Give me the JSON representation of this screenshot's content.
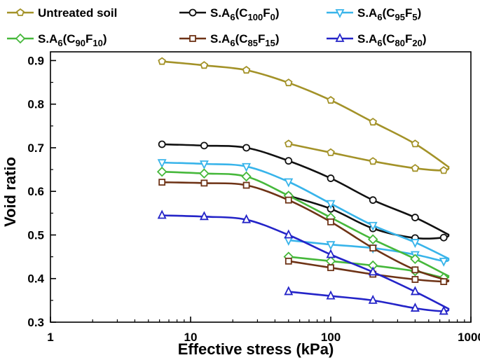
{
  "chart_data": {
    "type": "line",
    "title": "",
    "xlabel": "Effective stress (kPa)",
    "ylabel": "Void ratio",
    "xscale": "log",
    "xlim": [
      1,
      1000
    ],
    "ylim": [
      0.3,
      0.92
    ],
    "xticks": [
      {
        "value": 1,
        "label": "1"
      },
      {
        "value": 10,
        "label": "10"
      },
      {
        "value": 100,
        "label": "100"
      },
      {
        "value": 1000,
        "label": "1000"
      }
    ],
    "yticks": [
      {
        "value": 0.3,
        "label": "0.3"
      },
      {
        "value": 0.4,
        "label": "0.4"
      },
      {
        "value": 0.5,
        "label": "0.5"
      },
      {
        "value": 0.6,
        "label": "0.6"
      },
      {
        "value": 0.7,
        "label": "0.7"
      },
      {
        "value": 0.8,
        "label": "0.8"
      },
      {
        "value": 0.9,
        "label": "0.9"
      }
    ],
    "grid": false,
    "legend_position": "top",
    "series": [
      {
        "name": "Untreated soil",
        "label_parts": [
          {
            "t": "Untreated soil",
            "s": "n"
          }
        ],
        "color": "#a39228",
        "marker": "pentagon",
        "loading": {
          "x": [
            6.25,
            12.5,
            25,
            50,
            100,
            200,
            400,
            700
          ],
          "y": [
            0.898,
            0.889,
            0.878,
            0.849,
            0.809,
            0.759,
            0.709,
            0.655
          ]
        },
        "unloading": {
          "x": [
            700,
            640,
            400,
            200,
            100,
            50
          ],
          "y": [
            0.655,
            0.648,
            0.653,
            0.669,
            0.689,
            0.709
          ]
        }
      },
      {
        "name": "S.A6(C100F0)",
        "label_parts": [
          {
            "t": "S.A",
            "s": "n"
          },
          {
            "t": "6",
            "s": "sub"
          },
          {
            "t": "(C",
            "s": "n"
          },
          {
            "t": "100",
            "s": "sub"
          },
          {
            "t": "F",
            "s": "n"
          },
          {
            "t": "0",
            "s": "sub"
          },
          {
            "t": ")",
            "s": "n"
          }
        ],
        "color": "#111111",
        "marker": "circle",
        "loading": {
          "x": [
            6.25,
            12.5,
            25,
            50,
            100,
            200,
            400,
            700
          ],
          "y": [
            0.708,
            0.705,
            0.7,
            0.67,
            0.63,
            0.58,
            0.54,
            0.5
          ]
        },
        "unloading": {
          "x": [
            700,
            640,
            400,
            200,
            100,
            50
          ],
          "y": [
            0.5,
            0.494,
            0.493,
            0.515,
            0.56,
            0.59
          ]
        }
      },
      {
        "name": "S.A6(C95F5)",
        "label_parts": [
          {
            "t": "S.A",
            "s": "n"
          },
          {
            "t": "6",
            "s": "sub"
          },
          {
            "t": "(C",
            "s": "n"
          },
          {
            "t": "95",
            "s": "sub"
          },
          {
            "t": "F",
            "s": "n"
          },
          {
            "t": "5",
            "s": "sub"
          },
          {
            "t": ")",
            "s": "n"
          }
        ],
        "color": "#38b4ea",
        "marker": "triangle-down",
        "loading": {
          "x": [
            6.25,
            12.5,
            25,
            50,
            100,
            200,
            400,
            700
          ],
          "y": [
            0.666,
            0.663,
            0.657,
            0.622,
            0.572,
            0.522,
            0.483,
            0.445
          ]
        },
        "unloading": {
          "x": [
            700,
            640,
            400,
            200,
            100,
            50
          ],
          "y": [
            0.445,
            0.44,
            0.455,
            0.47,
            0.478,
            0.488
          ]
        }
      },
      {
        "name": "S.A6(C90F10)",
        "label_parts": [
          {
            "t": "S.A",
            "s": "n"
          },
          {
            "t": "6",
            "s": "sub"
          },
          {
            "t": "(C",
            "s": "n"
          },
          {
            "t": "90",
            "s": "sub"
          },
          {
            "t": "F",
            "s": "n"
          },
          {
            "t": "10",
            "s": "sub"
          },
          {
            "t": ")",
            "s": "n"
          }
        ],
        "color": "#46b83b",
        "marker": "diamond",
        "loading": {
          "x": [
            6.25,
            12.5,
            25,
            50,
            100,
            200,
            400,
            700
          ],
          "y": [
            0.645,
            0.641,
            0.634,
            0.59,
            0.54,
            0.49,
            0.445,
            0.405
          ]
        },
        "unloading": {
          "x": [
            700,
            640,
            400,
            200,
            100,
            50
          ],
          "y": [
            0.405,
            0.402,
            0.417,
            0.43,
            0.44,
            0.45
          ]
        }
      },
      {
        "name": "S.A6(C85F15)",
        "label_parts": [
          {
            "t": "S.A",
            "s": "n"
          },
          {
            "t": "6",
            "s": "sub"
          },
          {
            "t": "(C",
            "s": "n"
          },
          {
            "t": "85",
            "s": "sub"
          },
          {
            "t": "F",
            "s": "n"
          },
          {
            "t": "15",
            "s": "sub"
          },
          {
            "t": ")",
            "s": "n"
          }
        ],
        "color": "#6e3316",
        "marker": "square",
        "loading": {
          "x": [
            6.25,
            12.5,
            25,
            50,
            100,
            200,
            400,
            700
          ],
          "y": [
            0.621,
            0.619,
            0.614,
            0.58,
            0.53,
            0.47,
            0.42,
            0.395
          ]
        },
        "unloading": {
          "x": [
            700,
            640,
            400,
            200,
            100,
            50
          ],
          "y": [
            0.395,
            0.393,
            0.398,
            0.41,
            0.425,
            0.44
          ]
        }
      },
      {
        "name": "S.A6(C80F20)",
        "label_parts": [
          {
            "t": "S.A",
            "s": "n"
          },
          {
            "t": "6",
            "s": "sub"
          },
          {
            "t": "(C",
            "s": "n"
          },
          {
            "t": "80",
            "s": "sub"
          },
          {
            "t": "F",
            "s": "n"
          },
          {
            "t": "20",
            "s": "sub"
          },
          {
            "t": ")",
            "s": "n"
          }
        ],
        "color": "#2424c8",
        "marker": "triangle-up",
        "loading": {
          "x": [
            6.25,
            12.5,
            25,
            50,
            100,
            200,
            400,
            700
          ],
          "y": [
            0.545,
            0.542,
            0.535,
            0.5,
            0.455,
            0.415,
            0.37,
            0.33
          ]
        },
        "unloading": {
          "x": [
            700,
            640,
            400,
            200,
            100,
            50
          ],
          "y": [
            0.33,
            0.325,
            0.332,
            0.35,
            0.36,
            0.37
          ]
        }
      }
    ]
  }
}
